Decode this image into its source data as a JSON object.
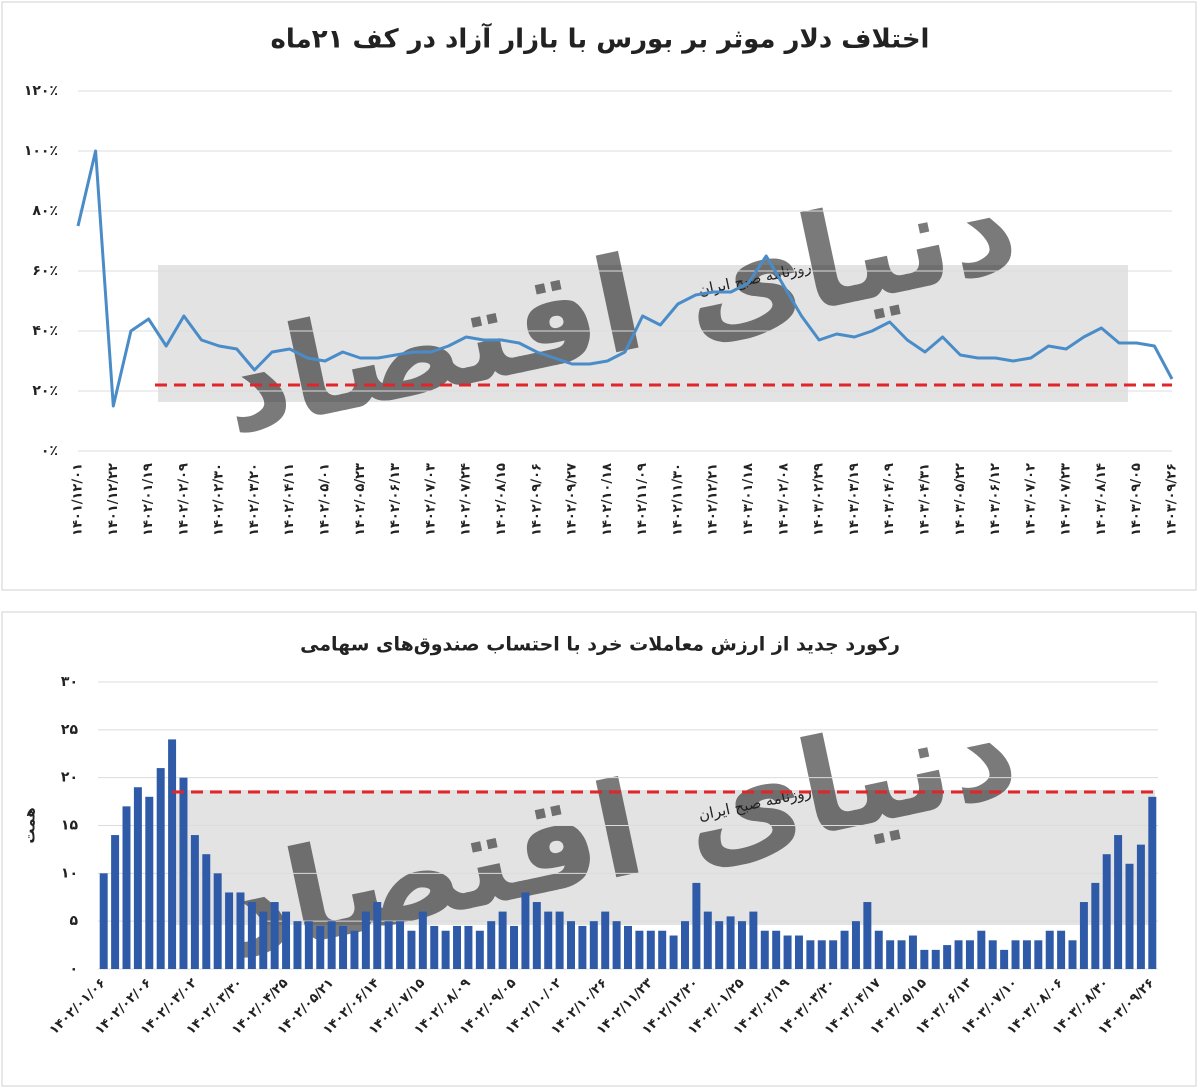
{
  "chart_data": [
    {
      "type": "line",
      "title": "اختلاف دلار موثر بر بورس با بازار آزاد در کف ۲۱ماه",
      "watermark": "روزنامه صبح ایران",
      "logo": "دنیای اقتصاد",
      "categories": [
        "۱۴۰۱/۱۲/۰۱",
        null,
        "۱۴۰۱/۱۲/۲۲",
        null,
        "۱۴۰۲/۰۱/۱۹",
        null,
        "۱۴۰۲/۰۲/۰۹",
        null,
        "۱۴۰۲/۰۲/۳۰",
        null,
        "۱۴۰۲/۰۳/۲۰",
        null,
        "۱۴۰۲/۰۴/۱۱",
        null,
        "۱۴۰۲/۰۵/۰۱",
        null,
        "۱۴۰۲/۰۵/۲۳",
        null,
        "۱۴۰۲/۰۶/۱۳",
        null,
        "۱۴۰۲/۰۷/۰۳",
        null,
        "۱۴۰۲/۰۷/۲۴",
        null,
        "۱۴۰۲/۰۸/۱۵",
        null,
        "۱۴۰۲/۰۹/۰۶",
        null,
        "۱۴۰۲/۰۹/۲۷",
        null,
        "۱۴۰۲/۱۰/۱۸",
        null,
        "۱۴۰۲/۱۱/۰۹",
        null,
        "۱۴۰۲/۱۱/۳۰",
        null,
        "۱۴۰۲/۱۲/۲۱",
        null,
        "۱۴۰۳/۰۱/۱۸",
        null,
        "۱۴۰۳/۰۲/۰۸",
        null,
        "۱۴۰۳/۰۲/۲۹",
        null,
        "۱۴۰۳/۰۳/۱۹",
        null,
        "۱۴۰۳/۰۴/۰۹",
        null,
        "۱۴۰۳/۰۴/۳۱",
        null,
        "۱۴۰۳/۰۵/۲۲",
        null,
        "۱۴۰۳/۰۶/۱۲",
        null,
        "۱۴۰۳/۰۷/۰۲",
        null,
        "۱۴۰۳/۰۷/۲۳",
        null,
        "۱۴۰۳/۰۸/۱۴",
        null,
        "۱۴۰۳/۰۹/۰۵",
        null,
        "۱۴۰۳/۰۹/۲۶"
      ],
      "values": [
        75,
        100,
        15,
        40,
        44,
        35,
        45,
        37,
        35,
        34,
        27,
        33,
        34,
        31,
        30,
        33,
        31,
        31,
        32,
        33,
        33,
        35,
        38,
        37,
        37,
        36,
        33,
        31,
        29,
        29,
        30,
        33,
        45,
        42,
        49,
        52,
        53,
        53,
        56,
        65,
        55,
        45,
        37,
        39,
        38,
        40,
        43,
        37,
        33,
        38,
        32,
        31,
        31,
        30,
        31,
        35,
        34,
        38,
        41,
        36,
        36,
        35,
        24
      ],
      "color": "#4a8cc8",
      "reference_line": {
        "value": 22,
        "color": "#e0262a"
      },
      "ylim": [
        0,
        120
      ],
      "yticks": [
        {
          "value": 0,
          "label": "۰٪"
        },
        {
          "value": 20,
          "label": "۲۰٪"
        },
        {
          "value": 40,
          "label": "۴۰٪"
        },
        {
          "value": 60,
          "label": "۶۰٪"
        },
        {
          "value": 80,
          "label": "۸۰٪"
        },
        {
          "value": 100,
          "label": "۱۰۰٪"
        },
        {
          "value": 120,
          "label": "۱۲۰٪"
        }
      ],
      "grid": true
    },
    {
      "type": "bar",
      "title": "رکورد جدید از ارزش معاملات خرد با احتساب صندوق‌های سهامی",
      "y_label": "همت",
      "watermark": "روزنامه صبح ایران",
      "logo": "دنیای اقتصاد",
      "categories": [
        "۱۴۰۲/۰۱/۰۶",
        null,
        null,
        null,
        "۱۴۰۲/۰۲/۰۶",
        null,
        null,
        null,
        "۱۴۰۲/۰۳/۰۲",
        null,
        null,
        null,
        "۱۴۰۲/۰۳/۳۰",
        null,
        null,
        null,
        "۱۴۰۲/۰۴/۲۵",
        null,
        null,
        null,
        "۱۴۰۲/۰۵/۲۱",
        null,
        null,
        null,
        "۱۴۰۲/۰۶/۱۴",
        null,
        null,
        null,
        "۱۴۰۲/۰۷/۱۵",
        null,
        null,
        null,
        "۱۴۰۲/۰۸/۰۹",
        null,
        null,
        null,
        "۱۴۰۲/۰۹/۰۵",
        null,
        null,
        null,
        "۱۴۰۲/۱۰/۰۲",
        null,
        null,
        null,
        "۱۴۰۲/۱۰/۲۶",
        null,
        null,
        null,
        "۱۴۰۲/۱۱/۲۳",
        null,
        null,
        null,
        "۱۴۰۲/۱۲/۲۰",
        null,
        null,
        null,
        "۱۴۰۳/۰۱/۲۵",
        null,
        null,
        null,
        "۱۴۰۳/۰۲/۱۹",
        null,
        null,
        null,
        "۱۴۰۳/۰۳/۲۰",
        null,
        null,
        null,
        "۱۴۰۳/۰۴/۱۷",
        null,
        null,
        null,
        "۱۴۰۳/۰۵/۱۵",
        null,
        null,
        null,
        "۱۴۰۳/۰۶/۱۳",
        null,
        null,
        null,
        "۱۴۰۳/۰۷/۱۰",
        null,
        null,
        null,
        "۱۴۰۳/۰۸/۰۶",
        null,
        null,
        null,
        "۱۴۰۳/۰۸/۳۰",
        null,
        null,
        null,
        "۱۴۰۳/۰۹/۲۶"
      ],
      "values": [
        10,
        14,
        17,
        19,
        18,
        21,
        24,
        20,
        14,
        12,
        10,
        8,
        8,
        7,
        6,
        7,
        6,
        5,
        5,
        4.5,
        5,
        4.5,
        4,
        6,
        7,
        5,
        5,
        4,
        6,
        4.5,
        4,
        4.5,
        4.5,
        4,
        5,
        6,
        4.5,
        8,
        7,
        6,
        6,
        5,
        4.5,
        5,
        6,
        5,
        4.5,
        4,
        4,
        4,
        3.5,
        5,
        9,
        6,
        5,
        5.5,
        5,
        6,
        4,
        4,
        3.5,
        3.5,
        3,
        3,
        3,
        4,
        5,
        7,
        4,
        3,
        3,
        3.5,
        2,
        2,
        2.5,
        3,
        3,
        4,
        3,
        2,
        3,
        3,
        3,
        4,
        4,
        3,
        7,
        9,
        12,
        14,
        11,
        13,
        18
      ],
      "color": "#2e5aa8",
      "reference_line": {
        "value": 18.5,
        "color": "#e0262a"
      },
      "ylim": [
        0,
        30
      ],
      "yticks": [
        {
          "value": 0,
          "label": "۰"
        },
        {
          "value": 5,
          "label": "۵"
        },
        {
          "value": 10,
          "label": "۱۰"
        },
        {
          "value": 15,
          "label": "۱۵"
        },
        {
          "value": 20,
          "label": "۲۰"
        },
        {
          "value": 25,
          "label": "۲۵"
        },
        {
          "value": 30,
          "label": "۳۰"
        }
      ],
      "grid": true
    }
  ]
}
